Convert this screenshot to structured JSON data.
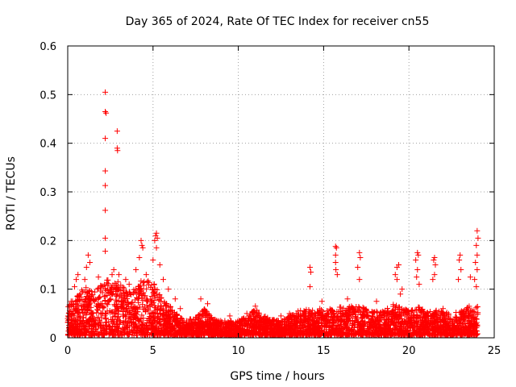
{
  "chart_data": {
    "type": "scatter",
    "title": "Day 365 of 2024, Rate Of TEC Index for receiver cn55",
    "xlabel": "GPS time / hours",
    "ylabel": "ROTI / TECUs",
    "xlim": [
      0,
      25
    ],
    "ylim": [
      0,
      0.6
    ],
    "xticks": [
      0,
      5,
      10,
      15,
      20,
      25
    ],
    "yticks": [
      0,
      0.1,
      0.2,
      0.3,
      0.4,
      0.5,
      0.6
    ],
    "xtick_labels": [
      "0",
      "5",
      "10",
      "15",
      "20",
      "25"
    ],
    "ytick_labels": [
      "0",
      "0.1",
      "0.2",
      "0.3",
      "0.4",
      "0.5",
      "0.6"
    ],
    "grid": true,
    "marker": "+",
    "colors": {
      "series": "#ff0000",
      "grid": "#a0a0a0",
      "axis": "#000000"
    },
    "series": [
      {
        "points": [
          [
            2.2,
            0.505
          ],
          [
            2.2,
            0.465
          ],
          [
            2.25,
            0.462
          ],
          [
            2.2,
            0.41
          ],
          [
            2.9,
            0.425
          ],
          [
            2.9,
            0.39
          ],
          [
            2.92,
            0.385
          ],
          [
            2.2,
            0.343
          ],
          [
            2.2,
            0.313
          ],
          [
            2.2,
            0.262
          ],
          [
            2.2,
            0.205
          ],
          [
            2.2,
            0.178
          ],
          [
            5.2,
            0.215
          ],
          [
            5.15,
            0.21
          ],
          [
            5.25,
            0.205
          ],
          [
            5.1,
            0.2
          ],
          [
            4.3,
            0.2
          ],
          [
            4.35,
            0.19
          ],
          [
            4.4,
            0.185
          ],
          [
            5.2,
            0.185
          ],
          [
            0.6,
            0.13
          ],
          [
            0.5,
            0.12
          ],
          [
            0.4,
            0.105
          ],
          [
            1.2,
            0.17
          ],
          [
            1.3,
            0.155
          ],
          [
            1.1,
            0.145
          ],
          [
            1.0,
            0.12
          ],
          [
            1.8,
            0.125
          ],
          [
            2.6,
            0.13
          ],
          [
            2.7,
            0.14
          ],
          [
            3.0,
            0.13
          ],
          [
            3.4,
            0.12
          ],
          [
            3.6,
            0.11
          ],
          [
            4.0,
            0.14
          ],
          [
            4.2,
            0.165
          ],
          [
            4.6,
            0.13
          ],
          [
            5.0,
            0.16
          ],
          [
            5.4,
            0.15
          ],
          [
            5.6,
            0.12
          ],
          [
            5.9,
            0.1
          ],
          [
            6.3,
            0.08
          ],
          [
            6.6,
            0.06
          ],
          [
            7.8,
            0.08
          ],
          [
            8.2,
            0.07
          ],
          [
            11.0,
            0.065
          ],
          [
            14.2,
            0.145
          ],
          [
            14.25,
            0.135
          ],
          [
            14.2,
            0.105
          ],
          [
            15.7,
            0.188
          ],
          [
            15.75,
            0.185
          ],
          [
            15.7,
            0.17
          ],
          [
            15.7,
            0.155
          ],
          [
            15.72,
            0.14
          ],
          [
            15.8,
            0.13
          ],
          [
            14.9,
            0.075
          ],
          [
            16.4,
            0.08
          ],
          [
            17.1,
            0.175
          ],
          [
            17.15,
            0.165
          ],
          [
            17.0,
            0.145
          ],
          [
            17.1,
            0.12
          ],
          [
            18.1,
            0.075
          ],
          [
            19.3,
            0.145
          ],
          [
            19.4,
            0.15
          ],
          [
            19.2,
            0.13
          ],
          [
            19.3,
            0.12
          ],
          [
            19.6,
            0.1
          ],
          [
            19.5,
            0.09
          ],
          [
            20.5,
            0.175
          ],
          [
            20.55,
            0.17
          ],
          [
            20.4,
            0.16
          ],
          [
            20.5,
            0.14
          ],
          [
            20.45,
            0.125
          ],
          [
            20.6,
            0.11
          ],
          [
            21.5,
            0.165
          ],
          [
            21.45,
            0.16
          ],
          [
            21.55,
            0.15
          ],
          [
            21.5,
            0.13
          ],
          [
            21.4,
            0.12
          ],
          [
            22.0,
            0.06
          ],
          [
            23.0,
            0.17
          ],
          [
            22.95,
            0.16
          ],
          [
            23.05,
            0.14
          ],
          [
            22.9,
            0.12
          ],
          [
            23.6,
            0.125
          ],
          [
            24.0,
            0.22
          ],
          [
            24.05,
            0.205
          ],
          [
            23.95,
            0.19
          ],
          [
            24.0,
            0.17
          ],
          [
            23.9,
            0.155
          ],
          [
            24.0,
            0.14
          ],
          [
            23.85,
            0.12
          ],
          [
            23.95,
            0.105
          ],
          [
            0.1,
            0.05
          ],
          [
            0.2,
            0.075
          ],
          [
            0.8,
            0.065
          ],
          [
            9.5,
            0.045
          ],
          [
            10.5,
            0.05
          ],
          [
            12.5,
            0.045
          ],
          [
            13.0,
            0.05
          ],
          [
            13.5,
            0.055
          ]
        ],
        "envelope": [
          [
            0,
            0.06
          ],
          [
            0.5,
            0.08
          ],
          [
            1,
            0.1
          ],
          [
            1.5,
            0.09
          ],
          [
            2,
            0.11
          ],
          [
            2.5,
            0.12
          ],
          [
            3,
            0.11
          ],
          [
            3.5,
            0.09
          ],
          [
            4,
            0.1
          ],
          [
            4.5,
            0.12
          ],
          [
            5,
            0.11
          ],
          [
            5.5,
            0.08
          ],
          [
            6,
            0.06
          ],
          [
            6.5,
            0.04
          ],
          [
            7,
            0.03
          ],
          [
            7.5,
            0.04
          ],
          [
            8,
            0.055
          ],
          [
            8.5,
            0.035
          ],
          [
            9,
            0.03
          ],
          [
            9.5,
            0.03
          ],
          [
            10,
            0.03
          ],
          [
            10.5,
            0.04
          ],
          [
            11,
            0.055
          ],
          [
            11.5,
            0.04
          ],
          [
            12,
            0.035
          ],
          [
            12.5,
            0.03
          ],
          [
            13,
            0.04
          ],
          [
            13.5,
            0.05
          ],
          [
            14,
            0.055
          ],
          [
            14.5,
            0.05
          ],
          [
            15,
            0.06
          ],
          [
            15.5,
            0.055
          ],
          [
            16,
            0.06
          ],
          [
            16.5,
            0.06
          ],
          [
            17,
            0.065
          ],
          [
            17.5,
            0.055
          ],
          [
            18,
            0.05
          ],
          [
            18.5,
            0.05
          ],
          [
            19,
            0.065
          ],
          [
            19.5,
            0.06
          ],
          [
            20,
            0.05
          ],
          [
            20.5,
            0.06
          ],
          [
            21,
            0.05
          ],
          [
            21.5,
            0.055
          ],
          [
            22,
            0.05
          ],
          [
            22.5,
            0.045
          ],
          [
            23,
            0.05
          ],
          [
            23.5,
            0.06
          ],
          [
            24,
            0.06
          ]
        ]
      }
    ]
  }
}
